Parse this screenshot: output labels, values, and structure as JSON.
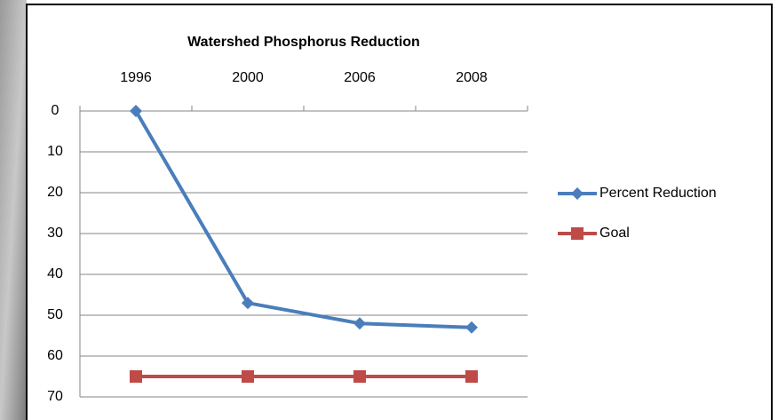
{
  "chart_data": {
    "type": "line",
    "title": "Watershed Phosphorus Reduction",
    "categories": [
      "1996",
      "2000",
      "2006",
      "2008"
    ],
    "series": [
      {
        "name": "Percent Reduction",
        "color": "#4a7ebb",
        "marker": "diamond",
        "values": [
          0,
          47,
          52,
          53
        ]
      },
      {
        "name": "Goal",
        "color": "#be4b48",
        "marker": "square",
        "values": [
          65,
          65,
          65,
          65
        ]
      }
    ],
    "ylim": [
      0,
      70
    ],
    "yticks": [
      0,
      10,
      20,
      30,
      40,
      50,
      60,
      70
    ],
    "y_reversed": true,
    "x_axis_position": "top",
    "grid": true,
    "legend": "right"
  }
}
